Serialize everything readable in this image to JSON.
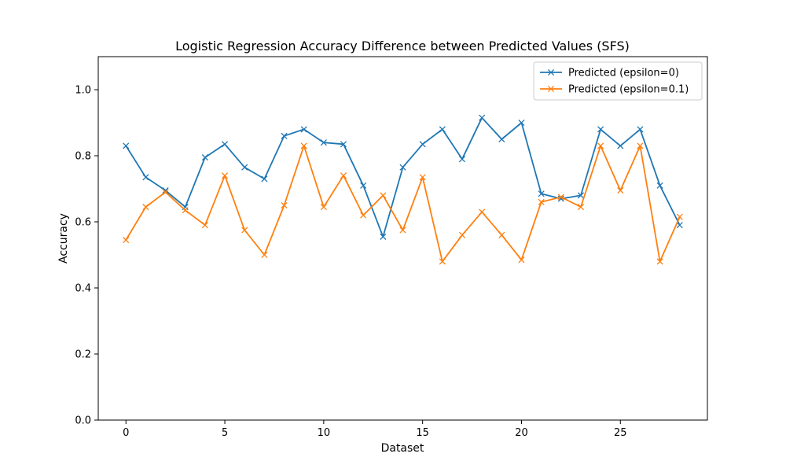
{
  "chart_data": {
    "type": "line",
    "title": "Logistic Regression Accuracy Difference between Predicted Values (SFS)",
    "xlabel": "Dataset",
    "ylabel": "Accuracy",
    "xlim": [
      -1.4,
      29.4
    ],
    "ylim": [
      0,
      1.1
    ],
    "x_ticks": [
      0,
      5,
      10,
      15,
      20,
      25
    ],
    "y_ticks": [
      0.0,
      0.2,
      0.4,
      0.6,
      0.8,
      1.0
    ],
    "grid": false,
    "legend_position": "top-right",
    "x": [
      0,
      1,
      2,
      3,
      4,
      5,
      6,
      7,
      8,
      9,
      10,
      11,
      12,
      13,
      14,
      15,
      16,
      17,
      18,
      19,
      20,
      21,
      22,
      23,
      24,
      25,
      26,
      27,
      28
    ],
    "series": [
      {
        "name": "Predicted (epsilon=0)",
        "color": "#1f77b4",
        "marker": "x",
        "values": [
          0.83,
          0.735,
          0.695,
          0.645,
          0.795,
          0.835,
          0.765,
          0.73,
          0.86,
          0.88,
          0.84,
          0.835,
          0.71,
          0.555,
          0.765,
          0.835,
          0.88,
          0.79,
          0.915,
          0.85,
          0.9,
          0.685,
          0.67,
          0.68,
          0.88,
          0.83,
          0.88,
          0.71,
          0.59
        ]
      },
      {
        "name": "Predicted (epsilon=0.1)",
        "color": "#ff7f0e",
        "marker": "x",
        "values": [
          0.545,
          0.645,
          0.69,
          0.635,
          0.59,
          0.74,
          0.575,
          0.5,
          0.65,
          0.83,
          0.645,
          0.74,
          0.62,
          0.68,
          0.575,
          0.735,
          0.48,
          0.56,
          0.63,
          0.56,
          0.485,
          0.66,
          0.675,
          0.645,
          0.83,
          0.695,
          0.83,
          0.48,
          0.615
        ]
      }
    ]
  }
}
